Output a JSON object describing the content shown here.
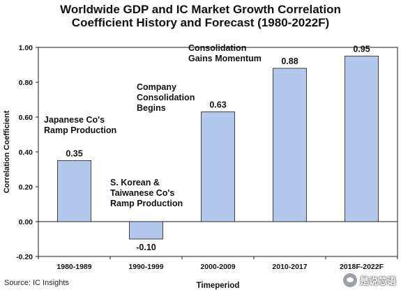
{
  "chart_data": {
    "type": "bar",
    "title_lines": [
      "Worldwide GDP and IC Market Growth Correlation",
      "Coefficient History and Forecast (1980-2022F)"
    ],
    "xlabel": "Timeperiod",
    "ylabel": "Correlation Coefficient",
    "ylim": [
      -0.2,
      1.0
    ],
    "yticks": [
      -0.2,
      0.0,
      0.2,
      0.4,
      0.6,
      0.8,
      1.0
    ],
    "ytick_labels": [
      "-0.20",
      "0.00",
      "0.20",
      "0.40",
      "0.60",
      "0.80",
      "1.00"
    ],
    "categories": [
      "1980-1989",
      "1990-1999",
      "2000-2009",
      "2010-2017",
      "2018F-2022F"
    ],
    "values": [
      0.35,
      -0.1,
      0.63,
      0.88,
      0.95
    ],
    "value_labels": [
      "0.35",
      "-0.10",
      "0.63",
      "0.88",
      "0.95"
    ],
    "bar_color": "#b4c8ec",
    "bar_edge_color": "#1a1a1a",
    "grid": false,
    "legend": "none",
    "annotations": [
      {
        "lines": [
          "Japanese Co's",
          "Ramp Production"
        ],
        "category": 0
      },
      {
        "lines": [
          "S. Korean &",
          "Taiwanese Co's",
          "Ramp Production"
        ],
        "category": 1
      },
      {
        "lines": [
          "Company",
          "Consolidation",
          "Begins"
        ],
        "category": 2
      },
      {
        "lines": [
          "Consolidation",
          "Gains Momentum"
        ],
        "category": 3
      }
    ]
  },
  "source": "Source: IC Insights",
  "watermark": {
    "text": "是说芯语",
    "icon": "wechat-logo-icon"
  }
}
